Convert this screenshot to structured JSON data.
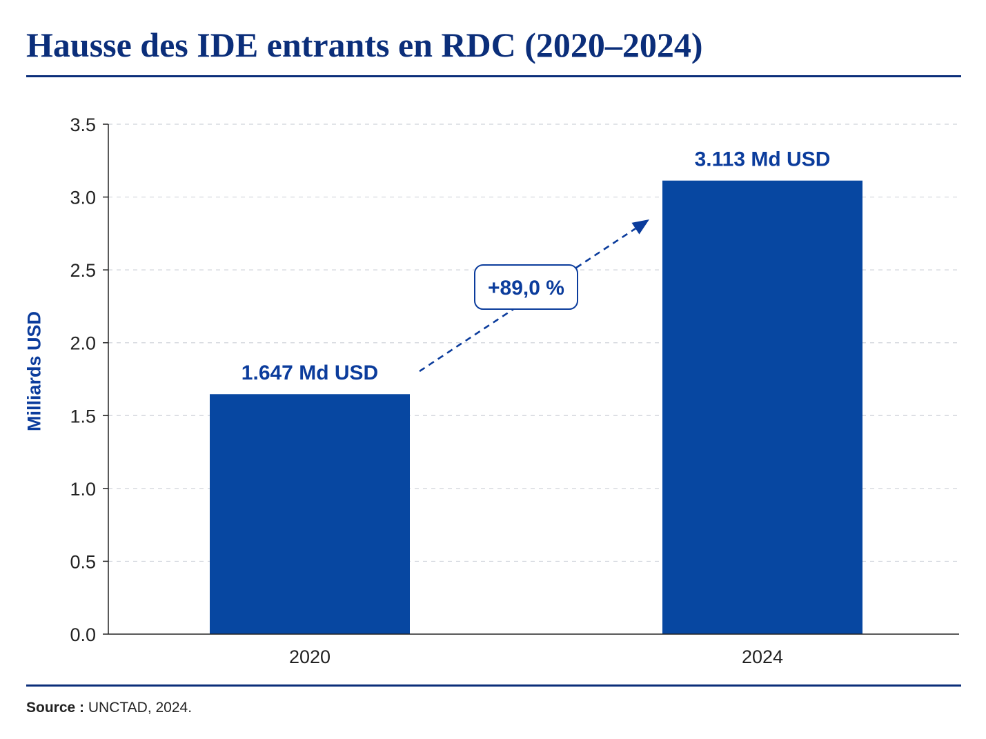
{
  "chart_data": {
    "type": "bar",
    "title": "Hausse des IDE entrants en RDC (2020–2024)",
    "xlabel": "",
    "ylabel": "Milliards USD",
    "categories": [
      "2020",
      "2024"
    ],
    "values": [
      1.647,
      3.113
    ],
    "data_labels": [
      "1.647 Md USD",
      "3.113 Md USD"
    ],
    "ylim": [
      0,
      3.5
    ],
    "yticks": [
      "0.0",
      "0.5",
      "1.0",
      "1.5",
      "2.0",
      "2.5",
      "3.0",
      "3.5"
    ],
    "grid": true,
    "annotation": "+89,0 %",
    "bar_color": "#0747a1",
    "accent_color": "#0b2e7a"
  },
  "source": {
    "label": "Source :",
    "text": "UNCTAD, 2024."
  }
}
